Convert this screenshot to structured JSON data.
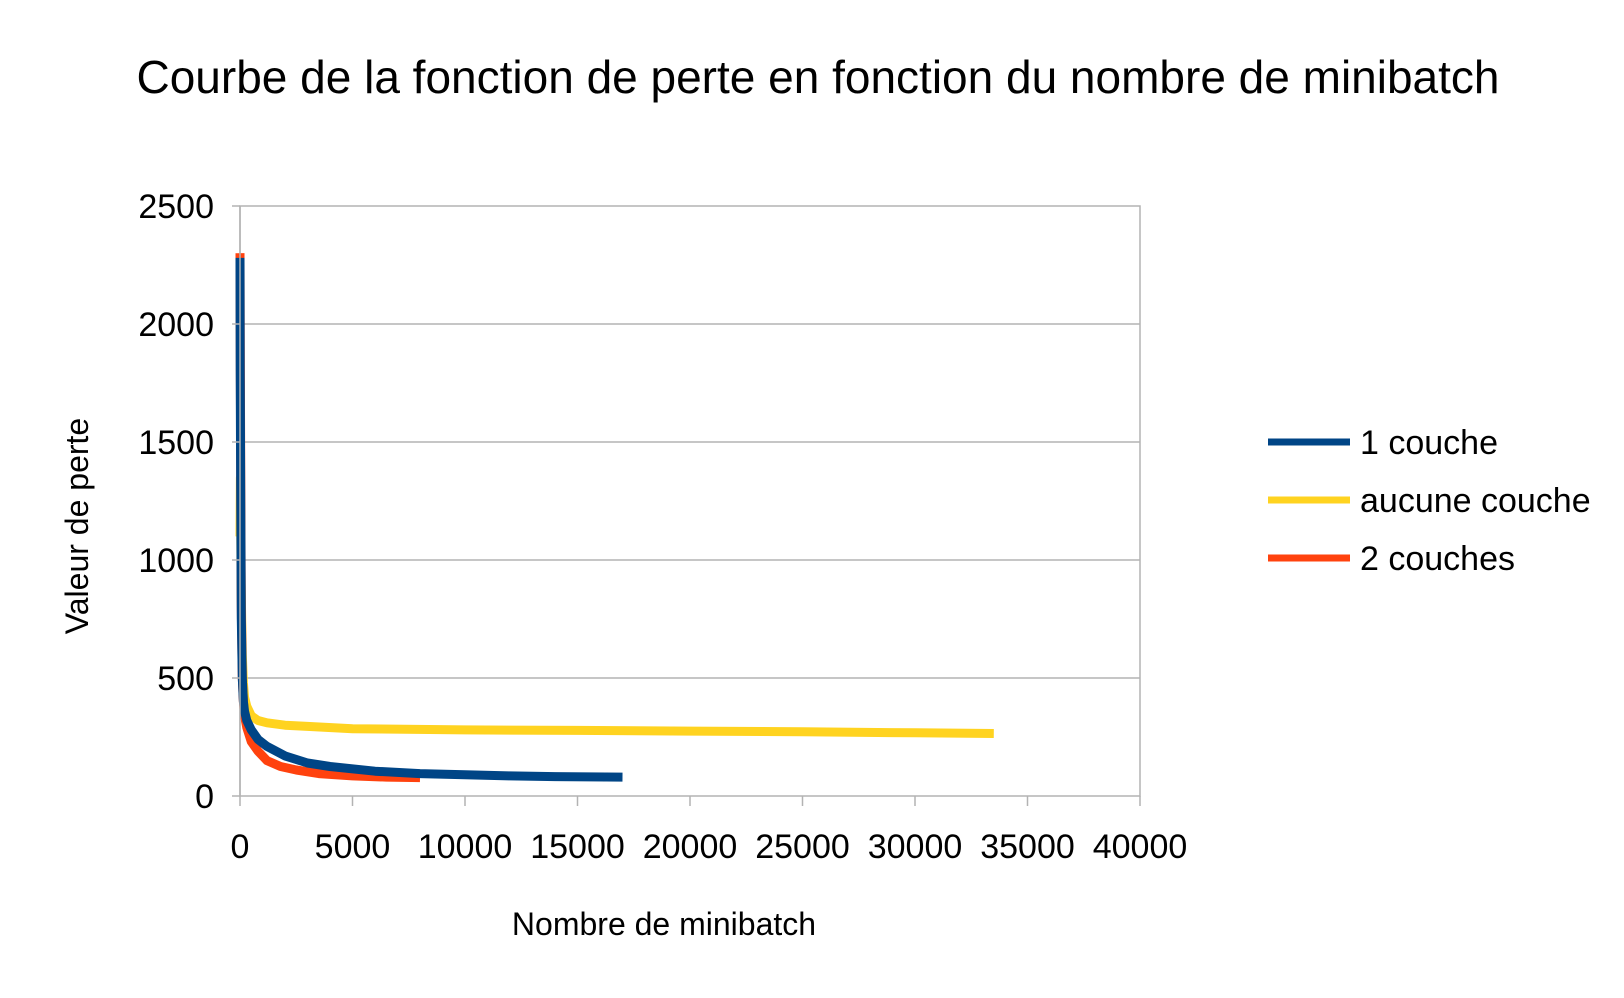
{
  "chart_data": {
    "type": "line",
    "title": "Courbe de la fonction de perte en fonction du nombre de minibatch",
    "xlabel": "Nombre de minibatch",
    "ylabel": "Valeur de perte",
    "xlim": [
      0,
      40000
    ],
    "ylim": [
      0,
      2500
    ],
    "x_ticks": [
      0,
      5000,
      10000,
      15000,
      20000,
      25000,
      30000,
      35000,
      40000
    ],
    "y_ticks": [
      0,
      500,
      1000,
      1500,
      2000,
      2500
    ],
    "grid": "horizontal",
    "legend_position": "right",
    "series": [
      {
        "name": "aucune couche",
        "color": "#ffd320",
        "x": [
          0,
          20,
          50,
          100,
          150,
          200,
          300,
          500,
          800,
          1200,
          2000,
          3000,
          5000,
          10000,
          15000,
          20000,
          25000,
          30000,
          33500
        ],
        "y": [
          1100,
          1350,
          900,
          600,
          480,
          420,
          380,
          340,
          320,
          310,
          300,
          295,
          285,
          280,
          278,
          275,
          272,
          268,
          265
        ]
      },
      {
        "name": "2 couches",
        "color": "#ff420e",
        "x": [
          0,
          10,
          30,
          60,
          100,
          150,
          200,
          300,
          500,
          800,
          1200,
          1800,
          2500,
          3500,
          5000,
          6500,
          8000
        ],
        "y": [
          2300,
          2000,
          1400,
          800,
          500,
          400,
          340,
          290,
          230,
          190,
          150,
          125,
          110,
          95,
          85,
          80,
          78
        ]
      },
      {
        "name": "1 couche",
        "color": "#004586",
        "x": [
          0,
          10,
          30,
          60,
          100,
          150,
          200,
          300,
          500,
          800,
          1200,
          2000,
          3000,
          4000,
          6000,
          8000,
          10000,
          12000,
          14000,
          17000
        ],
        "y": [
          2280,
          1800,
          1300,
          750,
          500,
          400,
          360,
          320,
          280,
          240,
          210,
          170,
          140,
          125,
          105,
          95,
          90,
          85,
          82,
          80
        ]
      }
    ],
    "legend_order": [
      "1 couche",
      "aucune couche",
      "2 couches"
    ]
  }
}
